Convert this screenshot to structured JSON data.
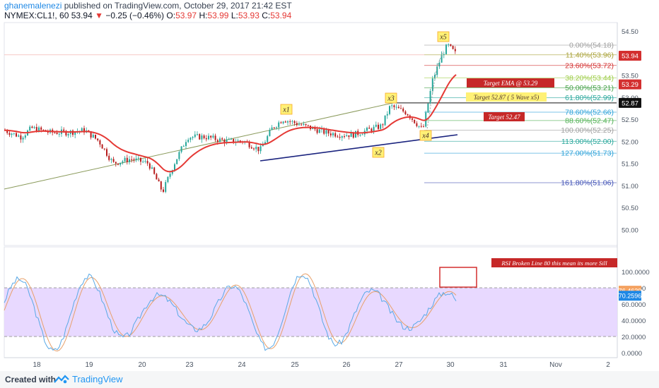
{
  "header": {
    "author": "ghanemalenezi",
    "published": "published on TradingView.com, October 29, 2017 21:42 EST",
    "symbol": "NYMEX:CL1!, 60",
    "last": "53.94",
    "change_arrow": "▼",
    "change": "−0.25 (−0.46%)",
    "open_label": "O:",
    "open": "53.97",
    "high_label": "H:",
    "high": "53.99",
    "low_label": "L:",
    "low": "53.93",
    "close_label": "C:",
    "close": "53.94"
  },
  "chart_data": {
    "type": "candlestick",
    "price_axis": [
      "54.50",
      "54.00",
      "53.50",
      "53.00",
      "52.50",
      "52.00",
      "51.50",
      "51.00",
      "50.50",
      "50.00"
    ],
    "time_axis": [
      "18",
      "19",
      "20",
      "23",
      "24",
      "25",
      "26",
      "27",
      "30",
      "31",
      "Nov",
      "2"
    ],
    "price_badges": {
      "last": "53.94",
      "ema": "53.29",
      "level": "52.87"
    },
    "fib_levels": [
      {
        "label": "0.00%(54.18)",
        "price": 54.18,
        "color": "#9e9e9e"
      },
      {
        "label": "11.40%(53.96)",
        "price": 53.96,
        "color": "#a8a035"
      },
      {
        "label": "23.60%(53.72)",
        "price": 53.72,
        "color": "#d32f2f"
      },
      {
        "label": "38.20%(53.44)",
        "price": 53.44,
        "color": "#9ccc45"
      },
      {
        "label": "50.00%(53.21)",
        "price": 53.21,
        "color": "#43a047"
      },
      {
        "label": "61.80%(52.99)",
        "price": 52.99,
        "color": "#26a69a"
      },
      {
        "label": "78.60%(52.66)",
        "price": 52.66,
        "color": "#29a0d8"
      },
      {
        "label": "88.60%(52.47)",
        "price": 52.47,
        "color": "#4caf50"
      },
      {
        "label": "100.00%(52.25)",
        "price": 52.25,
        "color": "#9e9e9e"
      },
      {
        "label": "113.00%(52.00)",
        "price": 52.0,
        "color": "#26a69a"
      },
      {
        "label": "127.00%(51.73)",
        "price": 51.73,
        "color": "#29a0d8"
      },
      {
        "label": "161.80%(51.06)",
        "price": 51.06,
        "color": "#3f51b5"
      }
    ],
    "annotations": {
      "target_ema": "Target  EMA @ 53.29",
      "target_wave": "Target 52.87 ( 5 Wave x5)",
      "target_low": "Target 52.47",
      "rsi_note": "RSI Broken Line 80 this mean its more Sill"
    },
    "wave_labels": [
      "x1",
      "x2",
      "x3",
      "x4",
      "x5"
    ],
    "rsi_axis": [
      "100.0000",
      "80.0000",
      "60.0000",
      "40.0000",
      "20.0000",
      "0.0000"
    ],
    "rsi_badges": {
      "k": "76.4629",
      "d": "70.2596"
    },
    "colors": {
      "up": "#26a69a",
      "down": "#b71c1c",
      "ema": "#e53935",
      "trend_upper": "#8a9a5b",
      "trend_lower": "#1a237e",
      "rsi_k": "#5aa9e6",
      "rsi_d": "#e8a06a",
      "band": "#e6d5ff",
      "accent": "#2196f3"
    }
  },
  "footer": {
    "created_with": "Created with",
    "brand": "TradingView"
  }
}
